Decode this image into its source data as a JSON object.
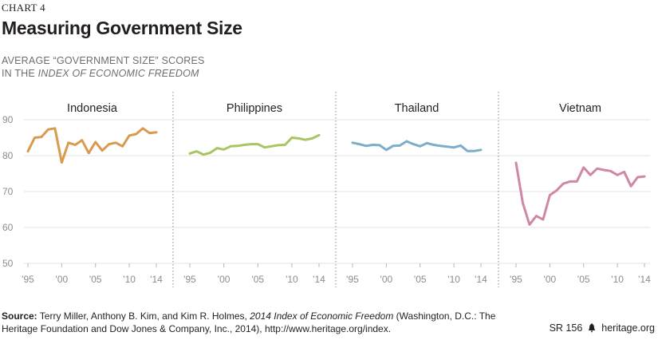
{
  "header": {
    "chart_number": "CHART 4",
    "title": "Measuring Government Size",
    "subtitle_line1": "AVERAGE “GOVERNMENT SIZE” SCORES",
    "subtitle_line2_prefix": "IN THE ",
    "subtitle_line2_italic": "INDEX OF ECONOMIC FREEDOM"
  },
  "footer": {
    "source_label": "Source:",
    "source_text_1": " Terry Miller, Anthony B. Kim, and Kim R. Holmes, ",
    "source_italic": "2014 Index of Economic Freedom",
    "source_text_2": " (Washington, D.C.: The Heritage Foundation and Dow Jones & Company, Inc., 2014), http://www.heritage.org/index.",
    "report_id": "SR 156",
    "site": "heritage.org",
    "logo_icon": "liberty-bell-icon"
  },
  "chart_data": [
    {
      "type": "line",
      "panel_title": "Indonesia",
      "color": "#d99a4e",
      "x": [
        1995,
        1996,
        1997,
        1998,
        1999,
        2000,
        2001,
        2002,
        2003,
        2004,
        2005,
        2006,
        2007,
        2008,
        2009,
        2010,
        2011,
        2012,
        2013,
        2014
      ],
      "values": [
        81.2,
        85.0,
        85.2,
        87.3,
        87.6,
        78.1,
        83.6,
        83.0,
        84.3,
        80.7,
        83.8,
        81.4,
        83.2,
        83.6,
        82.6,
        85.6,
        86.0,
        87.6,
        86.3,
        86.5
      ],
      "x_ticks": [
        "'95",
        "'00",
        "'05",
        "'10",
        "'14"
      ],
      "ylim": [
        50,
        90
      ]
    },
    {
      "type": "line",
      "panel_title": "Philippines",
      "color": "#a8c564",
      "x": [
        1995,
        1996,
        1997,
        1998,
        1999,
        2000,
        2001,
        2002,
        2003,
        2004,
        2005,
        2006,
        2007,
        2008,
        2009,
        2010,
        2011,
        2012,
        2013,
        2014
      ],
      "values": [
        80.6,
        81.2,
        80.3,
        80.8,
        82.1,
        81.7,
        82.6,
        82.7,
        83.0,
        83.2,
        83.2,
        82.3,
        82.6,
        82.9,
        83.0,
        85.0,
        84.8,
        84.4,
        84.8,
        85.7
      ],
      "x_ticks": [
        "'95",
        "'00",
        "'05",
        "'10",
        "'14"
      ],
      "ylim": [
        50,
        90
      ]
    },
    {
      "type": "line",
      "panel_title": "Thailand",
      "color": "#7aaecb",
      "x": [
        1995,
        1996,
        1997,
        1998,
        1999,
        2000,
        2001,
        2002,
        2003,
        2004,
        2005,
        2006,
        2007,
        2008,
        2009,
        2010,
        2011,
        2012,
        2013,
        2014
      ],
      "values": [
        83.6,
        83.2,
        82.7,
        83.0,
        82.9,
        81.6,
        82.7,
        82.8,
        84.0,
        83.2,
        82.6,
        83.5,
        83.0,
        82.7,
        82.5,
        82.3,
        82.8,
        81.3,
        81.3,
        81.6
      ],
      "x_ticks": [
        "'95",
        "'00",
        "'05",
        "'10",
        "'14"
      ],
      "ylim": [
        50,
        90
      ]
    },
    {
      "type": "line",
      "panel_title": "Vietnam",
      "color": "#cf87a8",
      "x": [
        1995,
        1996,
        1997,
        1998,
        1999,
        2000,
        2001,
        2002,
        2003,
        2004,
        2005,
        2006,
        2007,
        2008,
        2009,
        2010,
        2011,
        2012,
        2013,
        2014
      ],
      "values": [
        78.0,
        66.8,
        60.8,
        63.2,
        62.2,
        69.0,
        70.3,
        72.2,
        72.8,
        72.8,
        76.7,
        74.6,
        76.4,
        76.0,
        75.7,
        74.6,
        75.5,
        71.5,
        74.0,
        74.2
      ],
      "x_ticks": [
        "'95",
        "'00",
        "'05",
        "'10",
        "'14"
      ],
      "ylim": [
        50,
        90
      ]
    }
  ],
  "y_ticks": [
    50,
    60,
    70,
    80,
    90
  ]
}
